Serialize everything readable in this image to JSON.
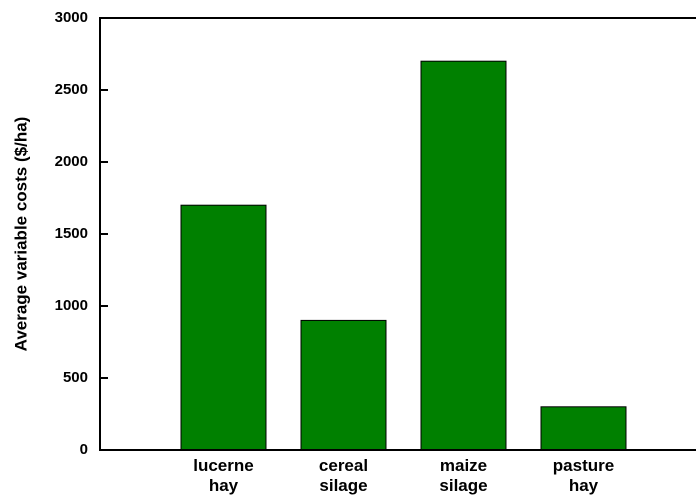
{
  "chart_data": {
    "type": "bar",
    "y_label": "Average variable costs ($/ha)",
    "categories": [
      "lucerne hay",
      "cereal silage",
      "maize silage",
      "pasture hay"
    ],
    "values": [
      1700,
      900,
      2700,
      300
    ],
    "color": "#008000",
    "ylim": [
      0,
      3000
    ],
    "yticks": [
      0,
      500,
      1000,
      1500,
      2000,
      2500,
      3000
    ]
  }
}
